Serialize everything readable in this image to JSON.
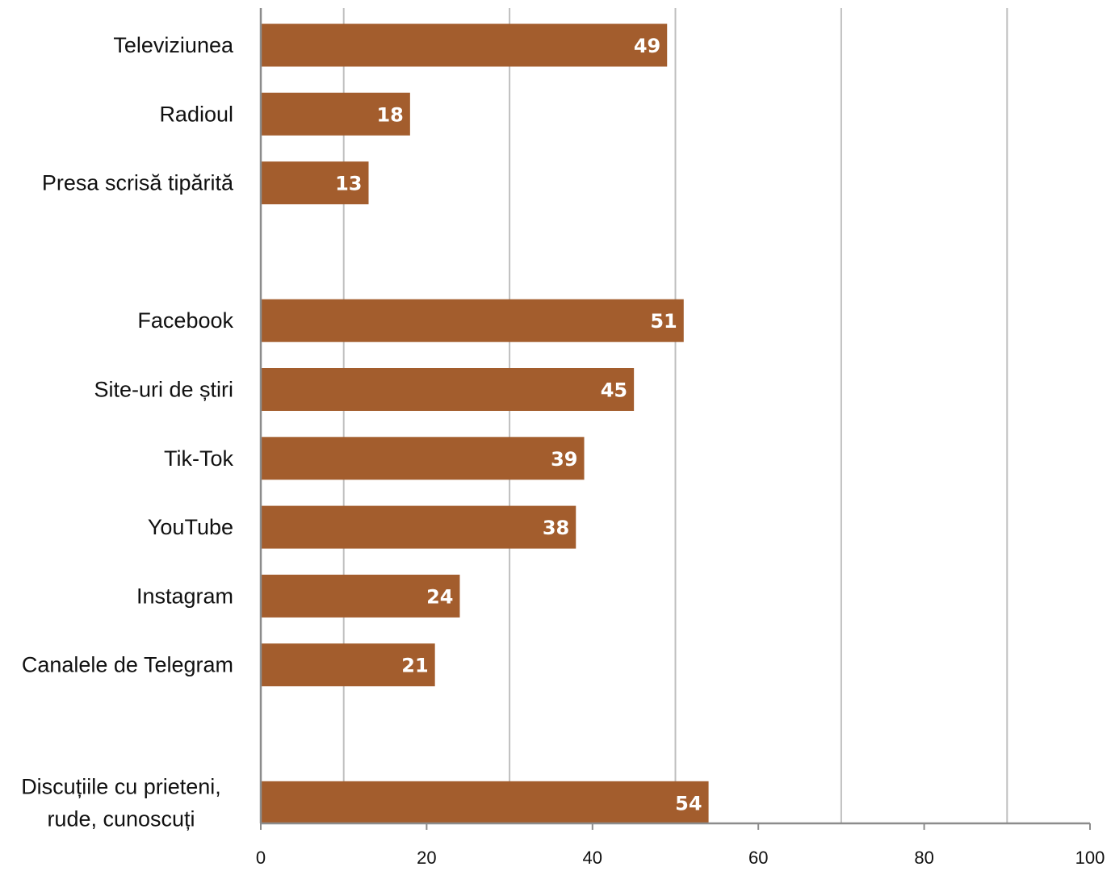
{
  "chart_data": {
    "type": "bar",
    "orientation": "horizontal",
    "categories": [
      "Televiziunea",
      "Radioul",
      "Presa scrisă tipărită",
      "",
      "Facebook",
      "Site-uri de știri",
      "Tik-Tok",
      "YouTube",
      "Instagram",
      "Canalele de Telegram",
      "",
      "Discuțiile cu prieteni, rude, cunoscuți"
    ],
    "category_lines": [
      [
        "Televiziunea"
      ],
      [
        "Radioul"
      ],
      [
        "Presa scrisă tipărită"
      ],
      [],
      [
        "Facebook"
      ],
      [
        "Site-uri de știri"
      ],
      [
        "Tik-Tok"
      ],
      [
        "YouTube"
      ],
      [
        "Instagram"
      ],
      [
        "Canalele de Telegram"
      ],
      [],
      [
        "Discuțiile cu prieteni,",
        "rude, cunoscuți"
      ]
    ],
    "values": [
      49,
      18,
      13,
      null,
      51,
      45,
      39,
      38,
      24,
      21,
      null,
      54
    ],
    "value_labels": [
      "49",
      "18",
      "13",
      "",
      "51",
      "45",
      "39",
      "38",
      "24",
      "21",
      "",
      "54"
    ],
    "xlim": [
      0,
      100
    ],
    "x_ticks": [
      0,
      20,
      40,
      60,
      80,
      100
    ],
    "x_tick_labels": [
      "0",
      "20",
      "40",
      "60",
      "80",
      "100"
    ],
    "vertical_gridlines": true,
    "title": "",
    "xlabel": "",
    "ylabel": "",
    "legend": "none",
    "colors": {
      "bar": "#a35d2d",
      "value_label": "#ffffff",
      "gridline": "#bfbfbf",
      "axis": "#8c8c8c",
      "text": "#111111"
    }
  }
}
